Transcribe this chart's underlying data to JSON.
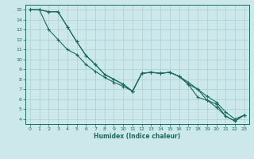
{
  "xlabel": "Humidex (Indice chaleur)",
  "ylabel": "",
  "background_color": "#cce8eb",
  "grid_color": "#aacfd4",
  "line_color": "#1a6b5a",
  "xlim": [
    -0.5,
    23.5
  ],
  "ylim": [
    3.5,
    15.5
  ],
  "xticks": [
    0,
    1,
    2,
    3,
    4,
    5,
    6,
    7,
    8,
    9,
    10,
    11,
    12,
    13,
    14,
    15,
    16,
    17,
    18,
    19,
    20,
    21,
    22,
    23
  ],
  "yticks": [
    4,
    5,
    6,
    7,
    8,
    9,
    10,
    11,
    12,
    13,
    14,
    15
  ],
  "series1_x": [
    0,
    1,
    2,
    3,
    4,
    5,
    6,
    7,
    8,
    9,
    10,
    11,
    12,
    13,
    14,
    15,
    16,
    17,
    18,
    19,
    20,
    21,
    22,
    23
  ],
  "series1_y": [
    15,
    15,
    13,
    12,
    11,
    10.5,
    9.5,
    8.8,
    8.2,
    7.7,
    7.3,
    6.8,
    8.6,
    8.7,
    8.6,
    8.7,
    8.3,
    7.7,
    7.0,
    6.3,
    5.7,
    4.7,
    4.0,
    4.4
  ],
  "series2_x": [
    0,
    1,
    2,
    3,
    4,
    5,
    6,
    7,
    8,
    9,
    10,
    11,
    12,
    13,
    14,
    15,
    16,
    17,
    18,
    19,
    20,
    21,
    22,
    23
  ],
  "series2_y": [
    15,
    15,
    14.8,
    14.8,
    13.3,
    11.8,
    10.4,
    9.5,
    8.5,
    8.0,
    7.5,
    6.8,
    8.6,
    8.7,
    8.6,
    8.7,
    8.3,
    7.5,
    7.0,
    5.9,
    5.5,
    4.3,
    3.8,
    4.4
  ],
  "series3_x": [
    0,
    1,
    2,
    3,
    4,
    5,
    6,
    7,
    8,
    9,
    10,
    11,
    12,
    13,
    14,
    15,
    16,
    17,
    18,
    19,
    20,
    21,
    22,
    23
  ],
  "series3_y": [
    15,
    15,
    14.8,
    14.8,
    13.3,
    11.8,
    10.4,
    9.5,
    8.5,
    8.0,
    7.5,
    6.8,
    8.6,
    8.7,
    8.6,
    8.7,
    8.3,
    7.5,
    6.2,
    5.9,
    5.2,
    4.3,
    3.8,
    4.4
  ]
}
